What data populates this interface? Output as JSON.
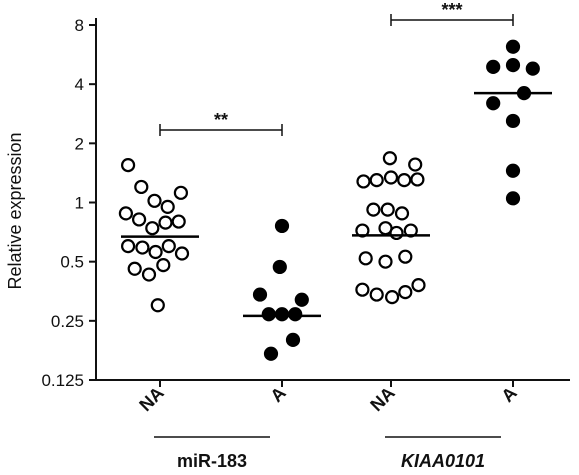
{
  "chart_data": {
    "type": "scatter",
    "ylabel": "Relative expression",
    "yscale": "log2",
    "ylim": [
      0.125,
      8
    ],
    "yticks": [
      {
        "value": 0.125,
        "label": "0.125"
      },
      {
        "value": 0.25,
        "label": "0.25"
      },
      {
        "value": 0.5,
        "label": "0.5"
      },
      {
        "value": 1,
        "label": "1"
      },
      {
        "value": 2,
        "label": "2"
      },
      {
        "value": 4,
        "label": "4"
      },
      {
        "value": 8,
        "label": "8"
      }
    ],
    "categories": [
      "NA",
      "A",
      "NA",
      "A"
    ],
    "groups": [
      {
        "label": "miR-183",
        "italic": false,
        "categories": [
          0,
          1
        ]
      },
      {
        "label": "KIAA0101",
        "italic": true,
        "categories": [
          2,
          3
        ]
      }
    ],
    "series": [
      {
        "category": 0,
        "marker": "open",
        "median": 0.67,
        "points": [
          [
            -0.29,
            1.55
          ],
          [
            -0.17,
            1.2
          ],
          [
            -0.05,
            1.02
          ],
          [
            0.07,
            0.95
          ],
          [
            0.19,
            1.12
          ],
          [
            -0.31,
            0.88
          ],
          [
            -0.19,
            0.82
          ],
          [
            -0.07,
            0.74
          ],
          [
            0.05,
            0.79
          ],
          [
            0.17,
            0.8
          ],
          [
            -0.29,
            0.6
          ],
          [
            -0.16,
            0.59
          ],
          [
            -0.04,
            0.56
          ],
          [
            0.08,
            0.6
          ],
          [
            0.2,
            0.55
          ],
          [
            -0.23,
            0.46
          ],
          [
            -0.1,
            0.43
          ],
          [
            0.03,
            0.48
          ],
          [
            -0.02,
            0.3
          ]
        ]
      },
      {
        "category": 1,
        "marker": "filled",
        "median": 0.265,
        "points": [
          [
            0.0,
            0.76
          ],
          [
            -0.02,
            0.47
          ],
          [
            -0.2,
            0.34
          ],
          [
            0.18,
            0.32
          ],
          [
            -0.12,
            0.27
          ],
          [
            0.0,
            0.27
          ],
          [
            0.12,
            0.27
          ],
          [
            0.1,
            0.2
          ],
          [
            -0.1,
            0.17
          ]
        ]
      },
      {
        "category": 2,
        "marker": "open",
        "median": 0.68,
        "points": [
          [
            -0.01,
            1.68
          ],
          [
            0.22,
            1.56
          ],
          [
            -0.25,
            1.28
          ],
          [
            -0.13,
            1.3
          ],
          [
            0.0,
            1.34
          ],
          [
            0.12,
            1.3
          ],
          [
            0.24,
            1.31
          ],
          [
            -0.16,
            0.92
          ],
          [
            -0.03,
            0.92
          ],
          [
            0.1,
            0.88
          ],
          [
            -0.26,
            0.72
          ],
          [
            -0.05,
            0.74
          ],
          [
            0.05,
            0.7
          ],
          [
            0.18,
            0.72
          ],
          [
            -0.23,
            0.52
          ],
          [
            -0.05,
            0.5
          ],
          [
            0.13,
            0.53
          ],
          [
            -0.26,
            0.36
          ],
          [
            -0.13,
            0.34
          ],
          [
            0.01,
            0.33
          ],
          [
            0.13,
            0.35
          ],
          [
            0.25,
            0.38
          ]
        ]
      },
      {
        "category": 3,
        "marker": "filled",
        "median": 3.6,
        "points": [
          [
            0.0,
            6.2
          ],
          [
            -0.18,
            4.9
          ],
          [
            0.0,
            5.0
          ],
          [
            0.18,
            4.8
          ],
          [
            -0.18,
            3.2
          ],
          [
            0.1,
            3.6
          ],
          [
            0.0,
            2.6
          ],
          [
            0.0,
            1.45
          ],
          [
            0.0,
            1.05
          ]
        ]
      }
    ],
    "comparisons": [
      {
        "from": 0,
        "to": 1,
        "label": "**"
      },
      {
        "from": 2,
        "to": 3,
        "label": "***"
      }
    ]
  }
}
